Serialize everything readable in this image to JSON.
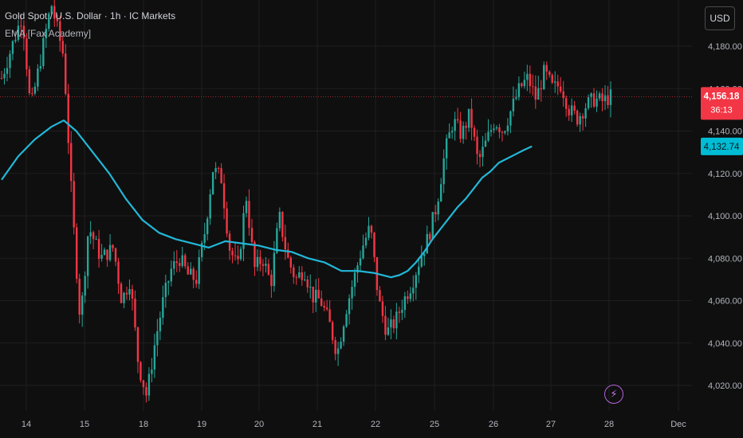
{
  "header": {
    "title": "Gold Spot / U.S. Dollar · 1h · IC Markets",
    "indicator": "EMA [Fax Academy]"
  },
  "currency_button": {
    "label": "USD"
  },
  "colors": {
    "up": "#26a69a",
    "down": "#f23645",
    "ema": "#22b8d8",
    "price_label_bg": "#f23645",
    "ema_label_bg": "#00bcd4",
    "background": "#0f0f0f",
    "grid": "#1f1f1f",
    "axis_text": "#b2b5be"
  },
  "chart_data": {
    "type": "candlestick",
    "ylim": [
      4010,
      4200
    ],
    "ytick_values": [
      4020,
      4040,
      4060,
      4080,
      4100,
      4120,
      4140,
      4160,
      4180
    ],
    "ytick_labels": [
      "4,020.00",
      "4,040.00",
      "4,060.00",
      "4,080.00",
      "4,100.00",
      "4,120.00",
      "4,140.00",
      "4,160.00",
      "4,180.00"
    ],
    "xtick_labels": [
      "14",
      "15",
      "18",
      "19",
      "20",
      "21",
      "22",
      "25",
      "26",
      "27",
      "28",
      "Dec"
    ],
    "grid": true,
    "last_price": 4156.18,
    "last_price_label": "4,156.18",
    "countdown_label": "36:13",
    "ema_value_label": "4,132.74",
    "price_path": [
      [
        0,
        4165
      ],
      [
        5,
        4195
      ],
      [
        7,
        4150
      ],
      [
        10,
        4180
      ],
      [
        12,
        4200
      ],
      [
        15,
        4175
      ],
      [
        17,
        4105
      ],
      [
        19,
        4050
      ],
      [
        21,
        4095
      ],
      [
        24,
        4080
      ],
      [
        27,
        4085
      ],
      [
        29,
        4060
      ],
      [
        31,
        4070
      ],
      [
        33,
        4030
      ],
      [
        35,
        4015
      ],
      [
        37,
        4040
      ],
      [
        39,
        4060
      ],
      [
        41,
        4075
      ],
      [
        43,
        4080
      ],
      [
        45,
        4072
      ],
      [
        47,
        4070
      ],
      [
        49,
        4092
      ],
      [
        51,
        4122
      ],
      [
        53,
        4118
      ],
      [
        55,
        4085
      ],
      [
        57,
        4075
      ],
      [
        59,
        4110
      ],
      [
        61,
        4075
      ],
      [
        63,
        4080
      ],
      [
        65,
        4068
      ],
      [
        67,
        4100
      ],
      [
        69,
        4080
      ],
      [
        71,
        4070
      ],
      [
        73,
        4075
      ],
      [
        75,
        4062
      ],
      [
        77,
        4060
      ],
      [
        79,
        4050
      ],
      [
        81,
        4035
      ],
      [
        83,
        4055
      ],
      [
        85,
        4070
      ],
      [
        87,
        4085
      ],
      [
        89,
        4095
      ],
      [
        91,
        4060
      ],
      [
        93,
        4045
      ],
      [
        95,
        4050
      ],
      [
        97,
        4060
      ],
      [
        99,
        4068
      ],
      [
        101,
        4080
      ],
      [
        103,
        4090
      ],
      [
        105,
        4105
      ],
      [
        107,
        4130
      ],
      [
        109,
        4145
      ],
      [
        111,
        4138
      ],
      [
        113,
        4148
      ],
      [
        115,
        4125
      ],
      [
        117,
        4135
      ],
      [
        119,
        4145
      ],
      [
        121,
        4140
      ],
      [
        123,
        4150
      ],
      [
        125,
        4160
      ],
      [
        127,
        4165
      ],
      [
        129,
        4155
      ],
      [
        131,
        4168
      ],
      [
        133,
        4160
      ],
      [
        135,
        4162
      ],
      [
        137,
        4150
      ],
      [
        139,
        4146
      ],
      [
        141,
        4152
      ],
      [
        143,
        4155
      ],
      [
        145,
        4154
      ],
      [
        147,
        4156.18
      ]
    ],
    "ema": [
      [
        0,
        4117
      ],
      [
        4,
        4128
      ],
      [
        8,
        4136
      ],
      [
        12,
        4142
      ],
      [
        15,
        4145
      ],
      [
        18,
        4140
      ],
      [
        22,
        4130
      ],
      [
        26,
        4120
      ],
      [
        30,
        4108
      ],
      [
        34,
        4098
      ],
      [
        38,
        4092
      ],
      [
        42,
        4089
      ],
      [
        46,
        4087
      ],
      [
        50,
        4085
      ],
      [
        54,
        4088
      ],
      [
        58,
        4087
      ],
      [
        62,
        4086
      ],
      [
        66,
        4084
      ],
      [
        70,
        4083
      ],
      [
        74,
        4080
      ],
      [
        78,
        4078
      ],
      [
        82,
        4074
      ],
      [
        86,
        4074
      ],
      [
        90,
        4073
      ],
      [
        94,
        4071
      ],
      [
        96,
        4072
      ],
      [
        98,
        4074
      ],
      [
        100,
        4078
      ],
      [
        102,
        4083
      ],
      [
        104,
        4089
      ],
      [
        106,
        4094
      ],
      [
        108,
        4099
      ],
      [
        110,
        4104
      ],
      [
        112,
        4108
      ],
      [
        114,
        4113
      ],
      [
        116,
        4118
      ],
      [
        118,
        4121
      ],
      [
        120,
        4125
      ],
      [
        122,
        4127
      ],
      [
        124,
        4129
      ],
      [
        126,
        4131
      ],
      [
        128,
        4132.74
      ]
    ]
  }
}
